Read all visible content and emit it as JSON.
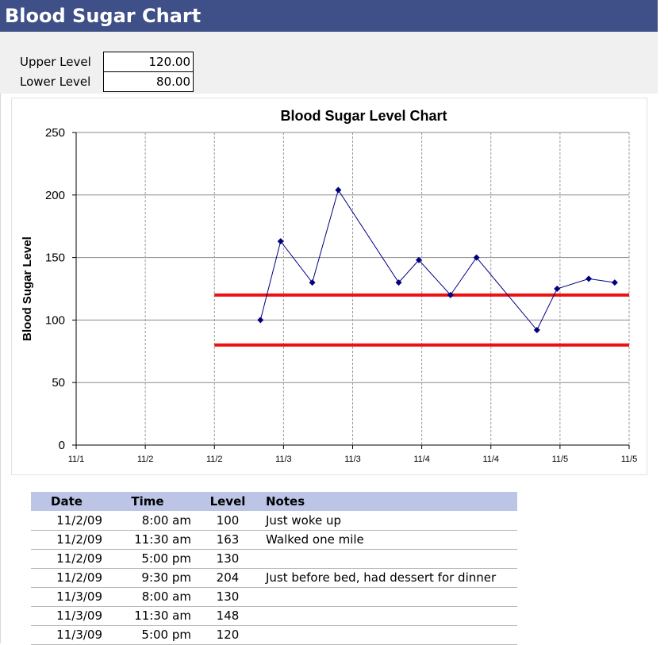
{
  "sheet_title": "Blood Sugar Chart",
  "levels": {
    "upper_label": "Upper Level",
    "upper_value": "120.00",
    "lower_label": "Lower Level",
    "lower_value": "80.00"
  },
  "colors": {
    "header_bg": "#3f5088",
    "series": "#000080",
    "limit_lines": "#ee1111",
    "table_header_bg": "#bcc5e5"
  },
  "chart_data": {
    "type": "line",
    "title": "Blood Sugar Level Chart",
    "xlabel": "",
    "ylabel": "Blood Sugar Level",
    "ylim": [
      0,
      250
    ],
    "y_ticks": [
      0,
      50,
      100,
      150,
      200,
      250
    ],
    "x_ticks": [
      "11/1",
      "11/2",
      "11/2",
      "11/3",
      "11/3",
      "11/4",
      "11/4",
      "11/5",
      "11/5"
    ],
    "x_range_days": [
      0,
      4
    ],
    "grid": "x and y",
    "series": [
      {
        "x": [
          "11/2/09 8:00 am",
          "11/2/09 11:30 am",
          "11/2/09 5:00 pm",
          "11/2/09 9:30 pm",
          "11/3/09 8:00 am",
          "11/3/09 11:30 am",
          "11/3/09 5:00 pm",
          "11/3/09 9:30 pm",
          "11/4/09 8:00 am",
          "11/4/09 11:30 am",
          "11/4/09 5:00 pm",
          "11/4/09 9:30 pm"
        ],
        "x_days": [
          1.333,
          1.479,
          1.708,
          1.896,
          2.333,
          2.479,
          2.708,
          2.896,
          3.333,
          3.479,
          3.708,
          3.896
        ],
        "values": [
          100,
          163,
          130,
          204,
          130,
          148,
          120,
          150,
          92,
          125,
          133,
          130
        ]
      }
    ],
    "reference_lines": [
      {
        "value": 120,
        "x_days": [
          1,
          4
        ]
      },
      {
        "value": 80,
        "x_days": [
          1,
          4
        ]
      }
    ]
  },
  "table": {
    "headers": [
      "Date",
      "Time",
      "Level",
      "Notes"
    ],
    "rows": [
      [
        "11/2/09",
        "8:00 am",
        "100",
        "Just woke up"
      ],
      [
        "11/2/09",
        "11:30 am",
        "163",
        "Walked one mile"
      ],
      [
        "11/2/09",
        "5:00 pm",
        "130",
        ""
      ],
      [
        "11/2/09",
        "9:30 pm",
        "204",
        "Just before bed, had dessert for dinner"
      ],
      [
        "11/3/09",
        "8:00 am",
        "130",
        ""
      ],
      [
        "11/3/09",
        "11:30 am",
        "148",
        ""
      ],
      [
        "11/3/09",
        "5:00 pm",
        "120",
        ""
      ]
    ]
  }
}
